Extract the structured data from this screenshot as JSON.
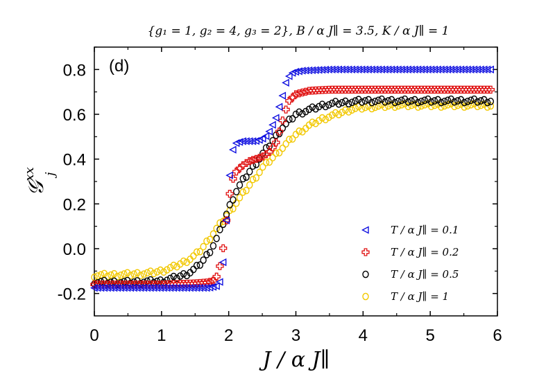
{
  "chart_data": {
    "type": "scatter",
    "title": "{g₁ = 1,  g₂ = 4,  g₃ = 2},  B / α J∥ = 3.5,  K / α J∥ = 1",
    "panel_label": "(d)",
    "xlabel": "J / α J∥",
    "ylabel": "𝒢ⱼˣˣ",
    "ylabel_main": "𝒢",
    "ylabel_sup": "xx",
    "ylabel_sub": "j",
    "xlim": [
      0,
      6
    ],
    "ylim": [
      -0.3,
      0.9
    ],
    "xticks": [
      0,
      1,
      2,
      3,
      4,
      5,
      6
    ],
    "xtick_labels": [
      "0",
      "1",
      "2",
      "3",
      "4",
      "5",
      "6"
    ],
    "yticks": [
      -0.2,
      0.0,
      0.2,
      0.4,
      0.6,
      0.8
    ],
    "ytick_labels": [
      "-0.2",
      "0.0",
      "0.2",
      "0.4",
      "0.6",
      "0.8"
    ],
    "legend_position": "lower-right",
    "series": [
      {
        "name": "T / α J∥  =  0.1",
        "marker": "triangle-left",
        "color": "#1010e0",
        "x": [
          0,
          1.0,
          1.7,
          1.85,
          1.9,
          1.95,
          2.0,
          2.05,
          2.1,
          2.2,
          2.3,
          2.4,
          2.5,
          2.55,
          2.6,
          2.65,
          2.7,
          2.75,
          2.8,
          2.85,
          2.9,
          2.95,
          3.0,
          3.1,
          3.5,
          4.0,
          4.5,
          5.0,
          5.5,
          5.9
        ],
        "y": [
          -0.175,
          -0.175,
          -0.175,
          -0.165,
          -0.12,
          0.05,
          0.28,
          0.43,
          0.47,
          0.48,
          0.48,
          0.48,
          0.49,
          0.5,
          0.52,
          0.55,
          0.58,
          0.63,
          0.68,
          0.74,
          0.77,
          0.785,
          0.79,
          0.795,
          0.8,
          0.8,
          0.8,
          0.8,
          0.8,
          0.8
        ]
      },
      {
        "name": "T / α J∥  =  0.2",
        "marker": "cross",
        "color": "#e01010",
        "x": [
          0,
          1.0,
          1.5,
          1.7,
          1.8,
          1.85,
          1.9,
          1.95,
          2.0,
          2.05,
          2.1,
          2.2,
          2.3,
          2.4,
          2.5,
          2.6,
          2.7,
          2.75,
          2.8,
          2.85,
          2.9,
          3.0,
          3.2,
          3.5,
          4.0,
          4.5,
          5.0,
          5.5,
          5.9
        ],
        "y": [
          -0.16,
          -0.16,
          -0.155,
          -0.15,
          -0.14,
          -0.1,
          -0.04,
          0.08,
          0.22,
          0.3,
          0.34,
          0.37,
          0.39,
          0.4,
          0.41,
          0.43,
          0.47,
          0.52,
          0.57,
          0.62,
          0.66,
          0.69,
          0.705,
          0.71,
          0.71,
          0.71,
          0.71,
          0.71,
          0.71
        ]
      },
      {
        "name": "T / α J∥  =  0.5",
        "marker": "circle",
        "color": "#000000",
        "x": [
          0,
          0.5,
          1.0,
          1.2,
          1.4,
          1.5,
          1.6,
          1.7,
          1.8,
          1.9,
          2.0,
          2.1,
          2.2,
          2.3,
          2.4,
          2.5,
          2.6,
          2.7,
          2.8,
          2.9,
          3.0,
          3.2,
          3.4,
          3.6,
          3.8,
          4.0,
          4.5,
          5.0,
          5.5,
          5.9
        ],
        "y": [
          -0.15,
          -0.15,
          -0.145,
          -0.13,
          -0.11,
          -0.09,
          -0.06,
          -0.02,
          0.03,
          0.1,
          0.18,
          0.25,
          0.3,
          0.34,
          0.38,
          0.42,
          0.46,
          0.5,
          0.54,
          0.57,
          0.6,
          0.62,
          0.64,
          0.65,
          0.655,
          0.66,
          0.66,
          0.66,
          0.66,
          0.66
        ]
      },
      {
        "name": "T / α J∥  =  1",
        "marker": "circle",
        "color": "#f2c800",
        "x": [
          0,
          0.5,
          0.8,
          1.0,
          1.2,
          1.4,
          1.5,
          1.6,
          1.7,
          1.8,
          1.9,
          2.0,
          2.1,
          2.2,
          2.3,
          2.4,
          2.5,
          2.6,
          2.7,
          2.8,
          2.9,
          3.0,
          3.2,
          3.4,
          3.6,
          3.8,
          4.0,
          4.5,
          5.0,
          5.5,
          5.9
        ],
        "y": [
          -0.12,
          -0.115,
          -0.11,
          -0.1,
          -0.08,
          -0.05,
          -0.03,
          0.0,
          0.04,
          0.08,
          0.12,
          0.16,
          0.2,
          0.24,
          0.28,
          0.32,
          0.36,
          0.39,
          0.42,
          0.45,
          0.48,
          0.51,
          0.55,
          0.58,
          0.6,
          0.62,
          0.63,
          0.64,
          0.64,
          0.64,
          0.64
        ]
      }
    ]
  }
}
